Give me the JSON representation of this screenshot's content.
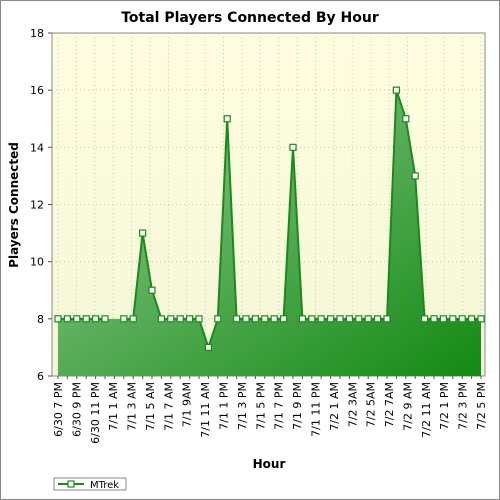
{
  "chart_data": {
    "type": "area",
    "title": "Total Players Connected By Hour",
    "xlabel": "Hour",
    "ylabel": "Players Connected",
    "ylim": [
      6,
      18
    ],
    "yticks": [
      6,
      8,
      10,
      12,
      14,
      16,
      18
    ],
    "grid": true,
    "legend_position": "bottom-left",
    "xtick_labels": [
      "6/30 7 PM",
      "6/30 9 PM",
      "6/30 11 PM",
      "7/1 1 AM",
      "7/1 3 AM",
      "7/1 5 AM",
      "7/1 7 AM",
      "7/1 9AM",
      "7/1 11 AM",
      "7/1 1 PM",
      "7/1 3 PM",
      "7/1 5 PM",
      "7/1 7 PM",
      "7/1 9 PM",
      "7/1 11 PM",
      "7/2 1 AM",
      "7/2 3AM",
      "7/2 5AM",
      "7/2 7AM",
      "7/2 9 AM",
      "7/2 11 AM",
      "7/2 1 PM",
      "7/2 3 PM",
      "7/2 5 PM"
    ],
    "series": [
      {
        "name": "MTrek",
        "color": "#1a8a1a",
        "values": [
          8,
          8,
          8,
          8,
          8,
          8,
          null,
          8,
          8,
          11,
          9,
          8,
          8,
          8,
          8,
          8,
          7,
          8,
          15,
          8,
          8,
          8,
          8,
          8,
          8,
          14,
          8,
          8,
          8,
          8,
          8,
          8,
          8,
          8,
          8,
          8,
          16,
          15,
          13,
          8,
          8,
          8,
          8,
          8,
          8,
          8
        ]
      }
    ]
  },
  "colors": {
    "plot_bg_top": "#fffde0",
    "plot_bg_bottom": "#f4f7d8",
    "fill_light": "#98cc98",
    "fill_dark": "#128a12",
    "line": "#1a8a1a"
  }
}
